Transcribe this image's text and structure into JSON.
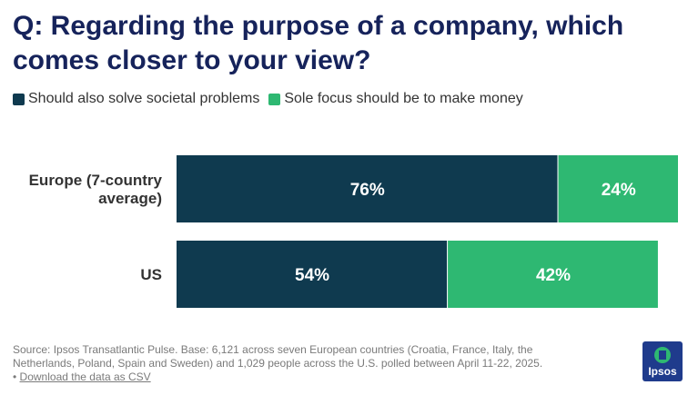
{
  "title": "Q: Regarding the purpose of a company, which comes closer to your view?",
  "legend": [
    {
      "label": "Should also solve societal problems",
      "color": "#0f3a4f"
    },
    {
      "label": "Sole focus should be to make money",
      "color": "#2eb872"
    }
  ],
  "chart_data": {
    "type": "bar",
    "orientation": "horizontal",
    "stacked": true,
    "categories": [
      "Europe (7-country average)",
      "US"
    ],
    "category_lines": [
      [
        "Europe (7-country",
        "average)"
      ],
      [
        "US"
      ]
    ],
    "series": [
      {
        "name": "Should also solve societal problems",
        "values": [
          76,
          54
        ],
        "color": "#0f3a4f"
      },
      {
        "name": "Sole focus should be to make money",
        "values": [
          24,
          42
        ],
        "color": "#2eb872"
      }
    ],
    "data_labels": [
      [
        "76%",
        "54%"
      ],
      [
        "24%",
        "42%"
      ]
    ],
    "xlim": [
      0,
      100
    ],
    "title": "",
    "xlabel": "",
    "ylabel": "",
    "grid": false,
    "legend_position": "top-left"
  },
  "footer": {
    "source": "Source: Ipsos Transatlantic Pulse. Base: 6,121 across seven European countries (Croatia, France, Italy, the Netherlands, Poland, Spain and Sweden) and 1,029 people across the U.S. polled between April 11-22, 2025.",
    "bullet": "•",
    "download_label": "Download the data as CSV"
  },
  "logo": {
    "text": "Ipsos",
    "color": "#1f3b8c"
  }
}
